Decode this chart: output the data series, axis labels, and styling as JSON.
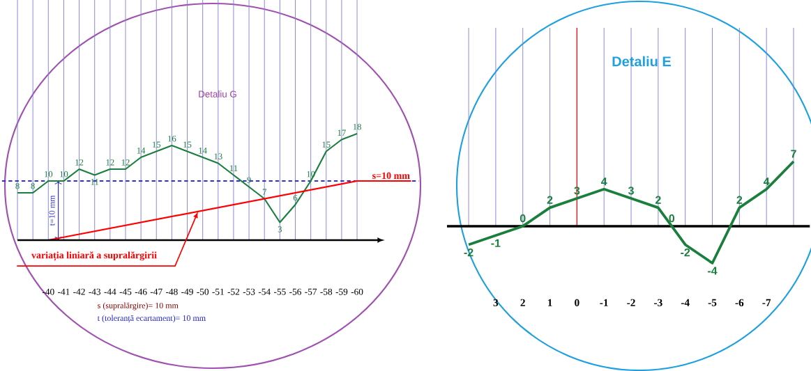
{
  "chart_data": [
    {
      "type": "line",
      "title": "Detaliu G",
      "xlim": [
        -37,
        -64
      ],
      "xticks": [
        {
          "value": -38,
          "label": null
        },
        {
          "value": -39,
          "label": null
        },
        -40,
        -41,
        -42,
        -43,
        -44,
        -45,
        -46,
        -47,
        -48,
        -49,
        -50,
        -51,
        -52,
        -53,
        -54,
        -55,
        -56,
        -57,
        -58,
        -59,
        -60
      ],
      "grid": "x",
      "tick_labels": "x",
      "series": [
        {
          "color": "#1a7f3c",
          "x": [
            -38,
            -39,
            -40,
            -41,
            -42,
            -43,
            -44,
            -45,
            -46,
            -47,
            -48,
            -49,
            -50,
            -51,
            -52,
            -53,
            -54,
            -55,
            -56,
            -57,
            -58,
            -59,
            -60
          ],
          "values": [
            8,
            8,
            10,
            10,
            12,
            11,
            12,
            12,
            14,
            15,
            16,
            15,
            14,
            13,
            11,
            9,
            7,
            3,
            6,
            10,
            15,
            17,
            18
          ],
          "value_labels": [
            "8",
            "8",
            "10",
            "10",
            "12",
            "11",
            "12",
            "12",
            "14",
            "15",
            "16",
            "15",
            "14",
            "13",
            "11",
            "9",
            "7",
            "3",
            "6",
            "10",
            "15",
            "17",
            "18"
          ]
        },
        {
          "name": "s=10 mm",
          "color": "#ff0000",
          "x": [
            -40,
            -60,
            -63.5
          ],
          "values": [
            0,
            10,
            10
          ]
        }
      ],
      "ref_lines": [
        {
          "axis": "y",
          "value": 10,
          "label": "t=10 mm",
          "color": "#3030d0",
          "line_style": "dashed"
        }
      ],
      "annotations": [
        {
          "text": "variația liniară a supralărgirii",
          "x": -49.7,
          "y": 4.85
        },
        "s (supralărgire)= 10 mm",
        "t (toleranță ecartament)= 10 mm"
      ]
    },
    {
      "type": "line",
      "title": "Detaliu E",
      "xlim": [
        4.8,
        -8.6
      ],
      "xticks": [
        {
          "value": 4,
          "label": null
        },
        3,
        2,
        1,
        0,
        -1,
        -2,
        -3,
        -4,
        -5,
        -6,
        -7,
        {
          "value": -8,
          "label": null
        }
      ],
      "grid": "x",
      "tick_labels": "x",
      "data_labels": true,
      "series": [
        {
          "color": "#1a7f3c",
          "x": [
            4,
            3,
            2,
            1,
            0,
            -1,
            -2,
            -3,
            -3.5,
            -4,
            -5,
            -6,
            -7,
            -8
          ],
          "values": [
            -2,
            -1,
            0,
            2,
            3,
            4,
            3,
            2,
            0,
            -2,
            -4,
            2,
            4,
            7
          ]
        }
      ],
      "ref_lines": [
        {
          "axis": "x",
          "value": 0,
          "color": "#ff0000"
        }
      ]
    }
  ]
}
